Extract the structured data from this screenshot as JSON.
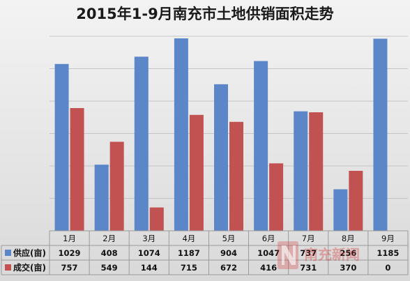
{
  "chart_data": {
    "type": "bar",
    "title": "2015年1-9月南充市土地供销面积走势",
    "categories": [
      "1月",
      "2月",
      "3月",
      "4月",
      "5月",
      "6月",
      "7月",
      "8月",
      "9月"
    ],
    "series": [
      {
        "name": "供应(亩)",
        "color": "#5b87c8",
        "values": [
          1029,
          408,
          1074,
          1187,
          904,
          1047,
          737,
          256,
          1185
        ]
      },
      {
        "name": "成交(亩)",
        "color": "#c25152",
        "values": [
          757,
          549,
          144,
          715,
          672,
          416,
          731,
          370,
          0
        ]
      }
    ],
    "ylim": [
      0,
      1200
    ],
    "grid": true,
    "data_table": true
  }
}
